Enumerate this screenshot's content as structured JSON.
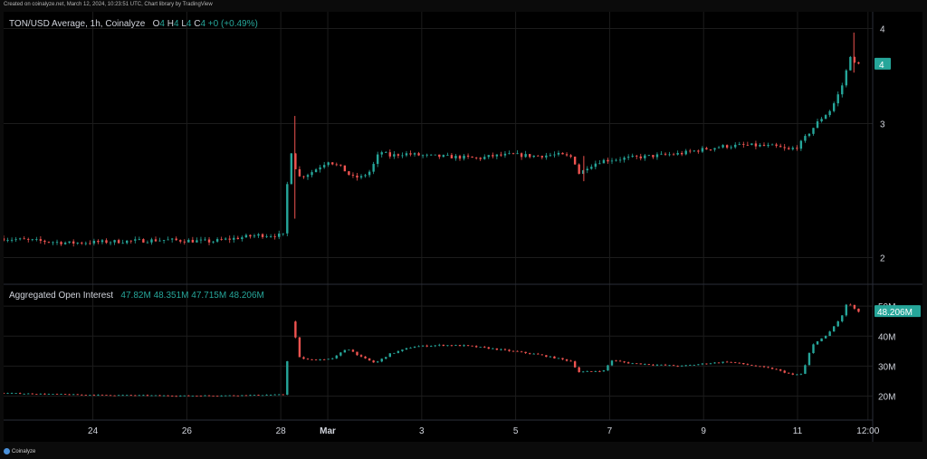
{
  "header": {
    "created_text": "Created on coinalyze.net, March 12, 2024, 10:23:51 UTC, Chart library by TradingView"
  },
  "footer": {
    "brand": "Coinalyze"
  },
  "colors": {
    "up": "#26a69a",
    "down": "#ef5350",
    "grid": "#1c1c1c",
    "axis_text": "#d1d4dc",
    "badge_bg": "#26a69a"
  },
  "price_legend": {
    "title": "TON/USD Average, 1h, Coinalyze",
    "o_label": "O",
    "o_value": "4",
    "h_label": "H",
    "h_value": "4",
    "l_label": "L",
    "l_value": "4",
    "c_label": "C",
    "c_value": "4",
    "change": "+0 (+0.49%)"
  },
  "oi_legend": {
    "title": "Aggregated Open Interest",
    "o_value": "47.82M",
    "h_value": "48.351M",
    "l_value": "47.715M",
    "c_value": "48.206M"
  },
  "chart_data": [
    {
      "type": "candlestick",
      "title": "TON/USD Average, 1h, Coinalyze",
      "y_scale": "log",
      "ylim": [
        1.85,
        4.15
      ],
      "y_ticks": [
        {
          "value": 2,
          "label": "2"
        },
        {
          "value": 3,
          "label": "3"
        },
        {
          "value": 4,
          "label": "4"
        }
      ],
      "last_value_badge": {
        "value": 3.59,
        "label": "4"
      },
      "x_ticks": [
        "24",
        "26",
        "28",
        "Mar",
        "3",
        "5",
        "7",
        "9",
        "11",
        "12:00"
      ],
      "x_tick_days": [
        24,
        26,
        28,
        29,
        31,
        33,
        35,
        37,
        39,
        40.5
      ],
      "x_range_days": [
        22.1,
        40.6
      ],
      "series_path": [
        [
          22.1,
          2.12
        ],
        [
          23.6,
          2.09
        ],
        [
          24.6,
          2.1
        ],
        [
          25.6,
          2.11
        ],
        [
          26.6,
          2.1
        ],
        [
          27.6,
          2.14
        ],
        [
          28.2,
          2.14
        ],
        [
          28.25,
          2.85
        ],
        [
          28.35,
          2.7
        ],
        [
          28.45,
          2.55
        ],
        [
          28.7,
          2.58
        ],
        [
          29.1,
          2.68
        ],
        [
          29.4,
          2.62
        ],
        [
          29.6,
          2.55
        ],
        [
          29.8,
          2.55
        ],
        [
          30.0,
          2.6
        ],
        [
          30.2,
          2.76
        ],
        [
          30.4,
          2.72
        ],
        [
          30.7,
          2.74
        ],
        [
          31.2,
          2.72
        ],
        [
          31.9,
          2.71
        ],
        [
          32.3,
          2.7
        ],
        [
          32.6,
          2.72
        ],
        [
          33.0,
          2.73
        ],
        [
          33.5,
          2.72
        ],
        [
          34.0,
          2.73
        ],
        [
          34.3,
          2.71
        ],
        [
          34.45,
          2.57
        ],
        [
          34.6,
          2.63
        ],
        [
          34.9,
          2.68
        ],
        [
          35.4,
          2.7
        ],
        [
          36.0,
          2.72
        ],
        [
          36.6,
          2.74
        ],
        [
          37.0,
          2.77
        ],
        [
          37.5,
          2.8
        ],
        [
          38.0,
          2.81
        ],
        [
          38.6,
          2.8
        ],
        [
          38.9,
          2.77
        ],
        [
          39.1,
          2.8
        ],
        [
          39.4,
          2.95
        ],
        [
          39.55,
          3.03
        ],
        [
          39.8,
          3.13
        ],
        [
          40.0,
          3.32
        ],
        [
          40.1,
          3.45
        ],
        [
          40.2,
          3.72
        ],
        [
          40.25,
          3.6
        ],
        [
          40.35,
          3.59
        ]
      ],
      "spikes": [
        {
          "x": 28.3,
          "high": 3.07,
          "low": 2.25
        },
        {
          "x": 34.45,
          "high": 2.72,
          "low": 2.52
        },
        {
          "x": 40.2,
          "high": 3.95,
          "low": 3.5
        }
      ]
    },
    {
      "type": "candlestick",
      "title": "Aggregated Open Interest",
      "ylim": [
        12000000,
        57000000
      ],
      "y_ticks": [
        {
          "value": 20000000,
          "label": "20M"
        },
        {
          "value": 30000000,
          "label": "30M"
        },
        {
          "value": 40000000,
          "label": "40M"
        },
        {
          "value": 50000000,
          "label": "50M"
        }
      ],
      "last_value_badge": {
        "value": 48206000,
        "label": "48.206M"
      },
      "series_path": [
        [
          22.1,
          21.0
        ],
        [
          24.0,
          20.4
        ],
        [
          26.0,
          20.1
        ],
        [
          27.0,
          20.2
        ],
        [
          28.2,
          20.5
        ],
        [
          28.25,
          43.0
        ],
        [
          28.35,
          46.0
        ],
        [
          28.45,
          33.0
        ],
        [
          28.7,
          32.0
        ],
        [
          29.2,
          32.5
        ],
        [
          29.5,
          36.0
        ],
        [
          29.8,
          33.0
        ],
        [
          30.1,
          31.0
        ],
        [
          30.4,
          34.0
        ],
        [
          30.9,
          36.5
        ],
        [
          31.5,
          37.0
        ],
        [
          32.0,
          36.8
        ],
        [
          32.5,
          36.0
        ],
        [
          33.0,
          35.0
        ],
        [
          33.5,
          34.0
        ],
        [
          34.0,
          32.5
        ],
        [
          34.3,
          31.5
        ],
        [
          34.4,
          28.0
        ],
        [
          35.0,
          28.5
        ],
        [
          35.1,
          32.0
        ],
        [
          35.5,
          31.0
        ],
        [
          36.0,
          30.5
        ],
        [
          36.6,
          30.0
        ],
        [
          37.1,
          30.8
        ],
        [
          37.6,
          31.5
        ],
        [
          38.2,
          30.0
        ],
        [
          38.6,
          29.0
        ],
        [
          39.0,
          27.0
        ],
        [
          39.2,
          27.5
        ],
        [
          39.3,
          33.0
        ],
        [
          39.45,
          38.0
        ],
        [
          39.7,
          40.0
        ],
        [
          39.95,
          45.0
        ],
        [
          40.1,
          48.0
        ],
        [
          40.15,
          53.0
        ],
        [
          40.22,
          50.0
        ],
        [
          40.35,
          48.2
        ]
      ]
    }
  ]
}
